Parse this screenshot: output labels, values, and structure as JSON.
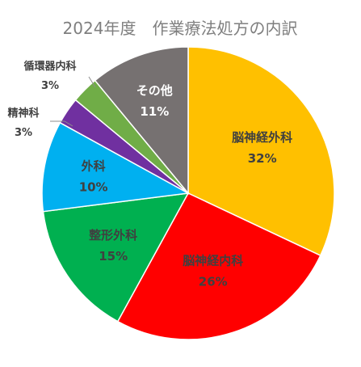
{
  "chart_data": {
    "type": "pie",
    "title": "2024年度　作業療法処方の内訳",
    "slices": [
      {
        "name": "脳神経外科",
        "value": 32,
        "label": "32%",
        "color": "#FFC000",
        "text_color": "#404040"
      },
      {
        "name": "脳神経内科",
        "value": 26,
        "label": "26%",
        "color": "#FF0000",
        "text_color": "#404040"
      },
      {
        "name": "整形外科",
        "value": 15,
        "label": "15%",
        "color": "#00B050",
        "text_color": "#404040"
      },
      {
        "name": "外科",
        "value": 10,
        "label": "10%",
        "color": "#00B0F0",
        "text_color": "#404040"
      },
      {
        "name": "精神科",
        "value": 3,
        "label": "3%",
        "color": "#7030A0",
        "text_color": "#404040"
      },
      {
        "name": "循環器内科",
        "value": 3,
        "label": "3%",
        "color": "#70AD47",
        "text_color": "#404040"
      },
      {
        "name": "その他",
        "value": 11,
        "label": "11%",
        "color": "#767171",
        "text_color": "#ffffff"
      }
    ],
    "start_angle_deg": 0,
    "direction": "clockwise",
    "legend": "none"
  }
}
